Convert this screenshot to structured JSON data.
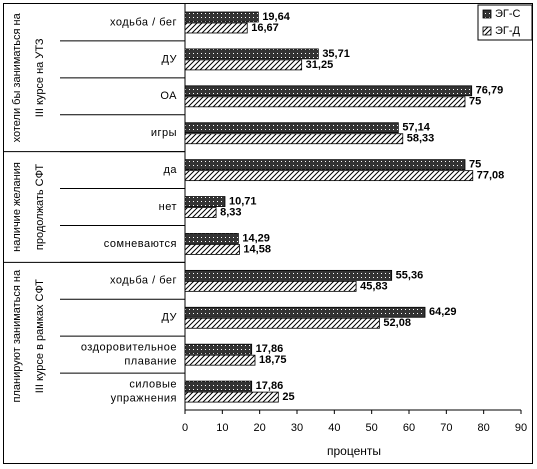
{
  "chart_data": {
    "type": "bar",
    "orientation": "horizontal",
    "groups": [
      {
        "label": [
          "хотели бы заниматься на",
          "III курсе на УТЗ"
        ],
        "size": 4
      },
      {
        "label": [
          "наличие желания",
          "продолжать СФТ"
        ],
        "size": 3
      },
      {
        "label": [
          "планируют заниматься на",
          "III курсе в рамках СФТ"
        ],
        "size": 4
      }
    ],
    "categories": [
      "ходьба / бег",
      "ДУ",
      "ОА",
      "игры",
      "да",
      "нет",
      "сомневаются",
      "ходьба / бег",
      "ДУ",
      [
        "оздоровительное",
        "плавание"
      ],
      [
        "силовые",
        "упражнения"
      ]
    ],
    "series": [
      {
        "name": "ЭГ-С",
        "color": "#333333",
        "values": [
          19.64,
          35.71,
          76.79,
          57.14,
          75,
          10.71,
          14.29,
          55.36,
          64.29,
          17.86,
          17.86
        ],
        "value_labels": [
          "19,64",
          "35,71",
          "76,79",
          "57,14",
          "75",
          "10,71",
          "14,29",
          "55,36",
          "64,29",
          "17,86",
          "17,86"
        ]
      },
      {
        "name": "ЭГ-Д",
        "color": "#000000",
        "values": [
          16.67,
          31.25,
          75,
          58.33,
          77.08,
          8.33,
          14.58,
          45.83,
          52.08,
          18.75,
          25
        ],
        "value_labels": [
          "16,67",
          "31,25",
          "75",
          "58,33",
          "77,08",
          "8,33",
          "14,58",
          "45,83",
          "52,08",
          "18,75",
          "25"
        ]
      }
    ],
    "xlabel": "проценты",
    "xlim": [
      0,
      90
    ],
    "xticks": [
      0,
      10,
      20,
      30,
      40,
      50,
      60,
      70,
      80,
      90
    ],
    "legend": "top-right"
  }
}
